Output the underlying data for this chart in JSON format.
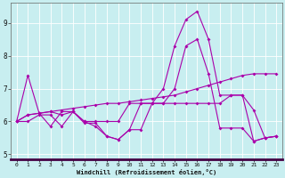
{
  "xlabel": "Windchill (Refroidissement éolien,°C)",
  "background_color": "#c8eef0",
  "line_color": "#aa00aa",
  "grid_color": "#ffffff",
  "xlim": [
    -0.5,
    23.5
  ],
  "ylim": [
    4.85,
    9.6
  ],
  "yticks": [
    5,
    6,
    7,
    8,
    9
  ],
  "xticks": [
    0,
    1,
    2,
    3,
    4,
    5,
    6,
    7,
    8,
    9,
    10,
    11,
    12,
    13,
    14,
    15,
    16,
    17,
    18,
    19,
    20,
    21,
    22,
    23
  ],
  "line1_x": [
    0,
    1,
    2,
    3,
    4,
    5,
    6,
    7,
    8,
    9,
    10,
    11,
    12,
    13,
    14,
    15,
    16,
    17,
    18,
    19,
    20,
    21,
    22,
    23
  ],
  "line1_y": [
    6.0,
    7.4,
    6.25,
    5.85,
    6.3,
    6.3,
    6.0,
    5.85,
    5.55,
    5.45,
    5.75,
    6.55,
    6.55,
    7.0,
    8.3,
    9.1,
    9.35,
    8.5,
    6.8,
    6.8,
    6.8,
    5.4,
    5.5,
    5.55
  ],
  "line2_x": [
    0,
    1,
    2,
    3,
    4,
    5,
    6,
    7,
    8,
    9,
    10,
    11,
    12,
    13,
    14,
    15,
    16,
    17,
    18,
    19,
    20,
    21,
    22,
    23
  ],
  "line2_y": [
    6.0,
    6.2,
    6.25,
    6.3,
    6.35,
    6.4,
    6.45,
    6.5,
    6.55,
    6.55,
    6.6,
    6.65,
    6.7,
    6.75,
    6.8,
    6.9,
    7.0,
    7.1,
    7.2,
    7.3,
    7.4,
    7.45,
    7.45,
    7.45
  ],
  "line3_x": [
    0,
    1,
    2,
    3,
    4,
    5,
    6,
    7,
    8,
    9,
    10,
    11,
    12,
    13,
    14,
    15,
    16,
    17,
    18,
    19,
    20,
    21,
    22,
    23
  ],
  "line3_y": [
    6.0,
    6.2,
    6.25,
    6.3,
    6.2,
    6.3,
    6.0,
    6.0,
    6.0,
    6.0,
    6.55,
    6.55,
    6.55,
    6.55,
    6.55,
    6.55,
    6.55,
    6.55,
    6.55,
    6.8,
    6.8,
    6.35,
    5.5,
    5.55
  ],
  "line4_x": [
    0,
    1,
    2,
    3,
    4,
    5,
    6,
    7,
    8,
    9,
    10,
    11,
    12,
    13,
    14,
    15,
    16,
    17,
    18,
    19,
    20,
    21,
    22,
    23
  ],
  "line4_y": [
    6.0,
    6.0,
    6.2,
    6.2,
    5.85,
    6.3,
    5.95,
    5.95,
    5.55,
    5.45,
    5.75,
    5.75,
    6.55,
    6.55,
    7.0,
    8.3,
    8.5,
    7.45,
    5.8,
    5.8,
    5.8,
    5.4,
    5.5,
    5.55
  ]
}
